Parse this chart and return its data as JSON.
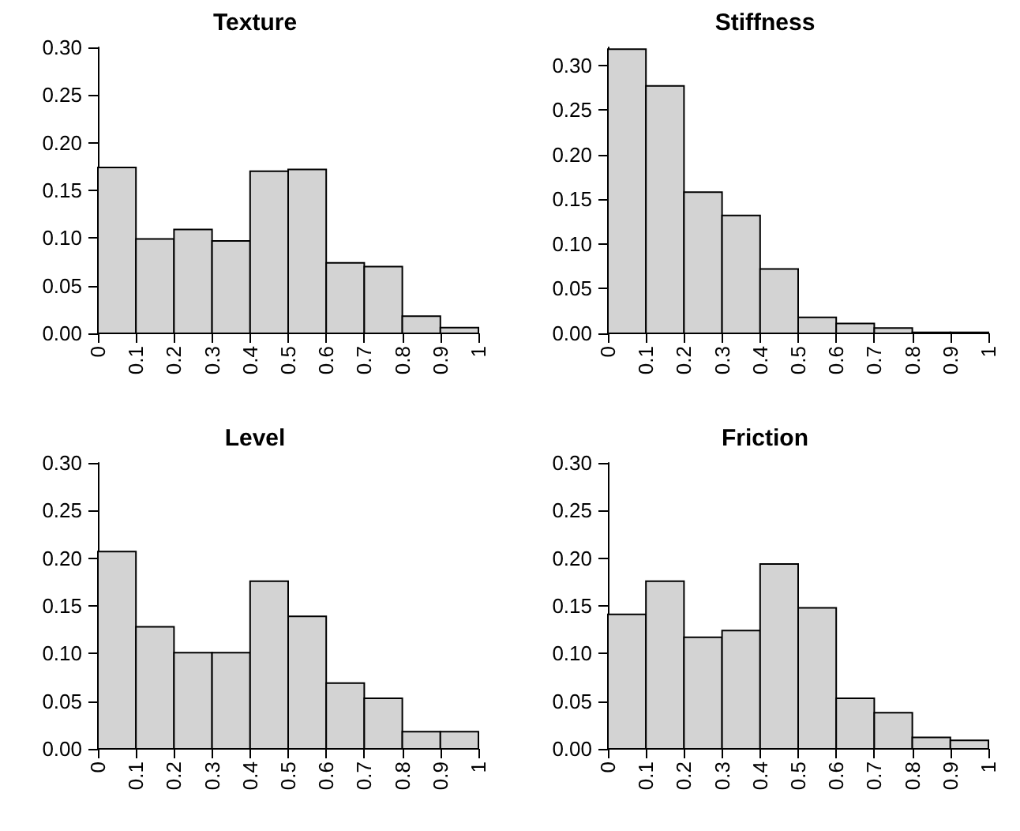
{
  "chart_data": [
    {
      "type": "histogram",
      "title": "Texture",
      "bins": [
        0,
        0.1,
        0.2,
        0.3,
        0.4,
        0.5,
        0.6,
        0.7,
        0.8,
        0.9,
        1
      ],
      "values": [
        0.174,
        0.099,
        0.109,
        0.097,
        0.17,
        0.172,
        0.074,
        0.07,
        0.018,
        0.006
      ],
      "color": "#d3d3d3",
      "xlim": [
        0,
        1
      ],
      "xticks": [
        0,
        0.1,
        0.2,
        0.3,
        0.4,
        0.5,
        0.6,
        0.7,
        0.8,
        0.9,
        1
      ],
      "ylim": [
        0,
        0.3
      ],
      "yticks": [
        {
          "value": 0,
          "label": "0.00"
        },
        0.05,
        {
          "value": 0.1,
          "label": "0.10"
        },
        0.15,
        {
          "value": 0.2,
          "label": "0.20"
        },
        0.25,
        {
          "value": 0.3,
          "label": "0.30"
        }
      ]
    },
    {
      "type": "histogram",
      "title": "Stiffness",
      "bins": [
        0,
        0.1,
        0.2,
        0.3,
        0.4,
        0.5,
        0.6,
        0.7,
        0.8,
        0.9,
        1
      ],
      "values": [
        0.318,
        0.277,
        0.158,
        0.132,
        0.072,
        0.018,
        0.011,
        0.006,
        0.001,
        0.001
      ],
      "color": "#d3d3d3",
      "xlim": [
        0,
        1
      ],
      "xticks": [
        0,
        0.1,
        0.2,
        0.3,
        0.4,
        0.5,
        0.6,
        0.7,
        0.8,
        0.9,
        1
      ],
      "ylim": [
        0,
        0.32
      ],
      "yticks": [
        {
          "value": 0,
          "label": "0.00"
        },
        0.05,
        {
          "value": 0.1,
          "label": "0.10"
        },
        0.15,
        {
          "value": 0.2,
          "label": "0.20"
        },
        0.25,
        {
          "value": 0.3,
          "label": "0.30"
        }
      ]
    },
    {
      "type": "histogram",
      "title": "Level",
      "bins": [
        0,
        0.1,
        0.2,
        0.3,
        0.4,
        0.5,
        0.6,
        0.7,
        0.8,
        0.9,
        1
      ],
      "values": [
        0.207,
        0.128,
        0.101,
        0.101,
        0.176,
        0.139,
        0.069,
        0.053,
        0.018,
        0.018
      ],
      "color": "#d3d3d3",
      "xlim": [
        0,
        1
      ],
      "xticks": [
        0,
        0.1,
        0.2,
        0.3,
        0.4,
        0.5,
        0.6,
        0.7,
        0.8,
        0.9,
        1
      ],
      "ylim": [
        0,
        0.3
      ],
      "yticks": [
        {
          "value": 0,
          "label": "0.00"
        },
        0.05,
        {
          "value": 0.1,
          "label": "0.10"
        },
        0.15,
        {
          "value": 0.2,
          "label": "0.20"
        },
        0.25,
        {
          "value": 0.3,
          "label": "0.30"
        }
      ]
    },
    {
      "type": "histogram",
      "title": "Friction",
      "bins": [
        0,
        0.1,
        0.2,
        0.3,
        0.4,
        0.5,
        0.6,
        0.7,
        0.8,
        0.9,
        1
      ],
      "values": [
        0.141,
        0.176,
        0.117,
        0.124,
        0.194,
        0.148,
        0.053,
        0.038,
        0.012,
        0.009
      ],
      "color": "#d3d3d3",
      "xlim": [
        0,
        1
      ],
      "xticks": [
        0,
        0.1,
        0.2,
        0.3,
        0.4,
        0.5,
        0.6,
        0.7,
        0.8,
        0.9,
        1
      ],
      "ylim": [
        0,
        0.3
      ],
      "yticks": [
        {
          "value": 0,
          "label": "0.00"
        },
        0.05,
        {
          "value": 0.1,
          "label": "0.10"
        },
        0.15,
        {
          "value": 0.2,
          "label": "0.20"
        },
        0.25,
        {
          "value": 0.3,
          "label": "0.30"
        }
      ]
    }
  ]
}
